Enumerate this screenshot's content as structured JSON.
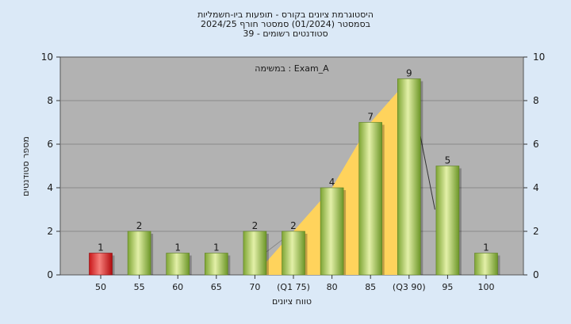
{
  "chart_data": {
    "type": "bar",
    "title_lines": [
      "היסטוגרמת ציונים בקורס - תופעות ביו-חשמליות",
      "בסמסטר  (01/2024)  סמסטר חורף 2024/25",
      "39 - סטודנטים רשומים"
    ],
    "annotation": "במשימה : Exam_A",
    "xlabel": "טווח ציונים",
    "ylabel": "מספר סטודנטים",
    "categories": [
      "50",
      "55",
      "60",
      "65",
      "70",
      "(Q1 75)",
      "80",
      "85",
      "(Q3 90)",
      "95",
      "100"
    ],
    "values": [
      1,
      2,
      1,
      1,
      2,
      2,
      4,
      7,
      9,
      5,
      1
    ],
    "value_labels": [
      "1",
      "2",
      "1",
      "1",
      "2",
      "2",
      "4",
      "7",
      "9",
      "5",
      "1"
    ],
    "highlight_index": 0,
    "ylim": [
      0,
      10
    ],
    "yticks": [
      "0",
      "2",
      "4",
      "6",
      "8",
      "10"
    ],
    "grid": "horizontal",
    "iqr_band": {
      "from_category": "(Q1 75)",
      "to_category": "(Q3 90)"
    },
    "colors": {
      "page_background": "#dbe9f7",
      "plot_background": "#b2b2b2",
      "bar_green_light": "#dfeea3",
      "bar_green_dark": "#6f9a2a",
      "bar_red_light": "#f4726e",
      "bar_red_dark": "#b20d10",
      "iqr_fill": "#ffd35c"
    }
  }
}
